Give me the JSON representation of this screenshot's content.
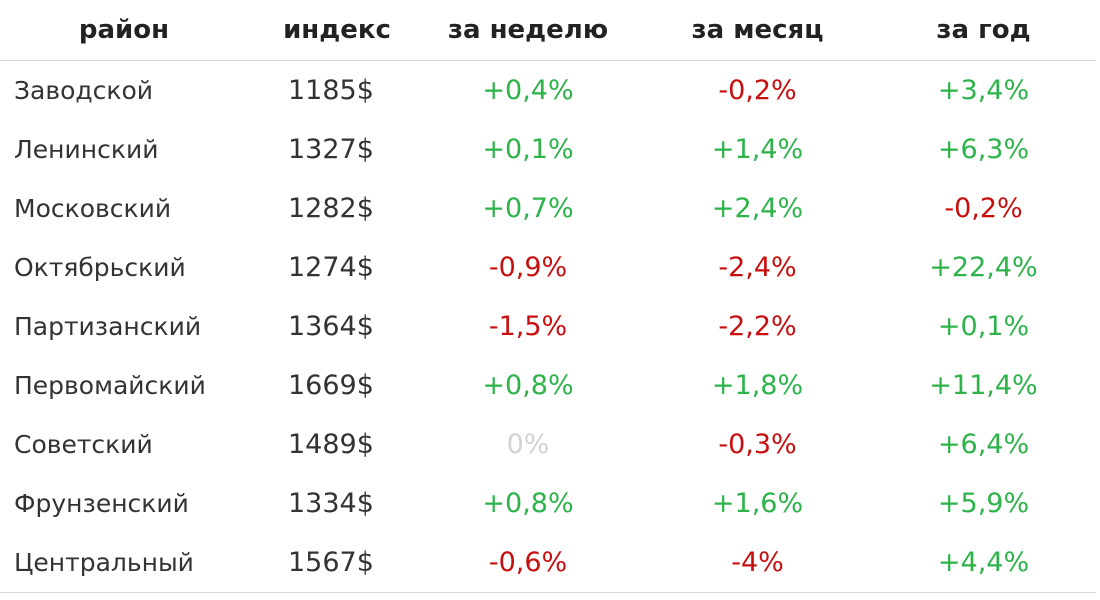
{
  "table": {
    "headers": {
      "district": "район",
      "index": "индекс",
      "week": "за неделю",
      "month": "за месяц",
      "year": "за год"
    },
    "rows": [
      {
        "district": "Заводской",
        "index": "1185$",
        "week": "+0,4%",
        "month": "-0,2%",
        "year": "+3,4%"
      },
      {
        "district": "Ленинский",
        "index": "1327$",
        "week": "+0,1%",
        "month": "+1,4%",
        "year": "+6,3%"
      },
      {
        "district": "Московский",
        "index": "1282$",
        "week": "+0,7%",
        "month": "+2,4%",
        "year": "-0,2%"
      },
      {
        "district": "Октябрьский",
        "index": "1274$",
        "week": "-0,9%",
        "month": "-2,4%",
        "year": "+22,4%"
      },
      {
        "district": "Партизанский",
        "index": "1364$",
        "week": "-1,5%",
        "month": "-2,2%",
        "year": "+0,1%"
      },
      {
        "district": "Первомайский",
        "index": "1669$",
        "week": "+0,8%",
        "month": "+1,8%",
        "year": "+11,4%"
      },
      {
        "district": "Советский",
        "index": "1489$",
        "week": "0%",
        "month": "-0,3%",
        "year": "+6,4%"
      },
      {
        "district": "Фрунзенский",
        "index": "1334$",
        "week": "+0,8%",
        "month": "+1,6%",
        "year": "+5,9%"
      },
      {
        "district": "Центральный",
        "index": "1567$",
        "week": "-0,6%",
        "month": "-4%",
        "year": "+4,4%"
      }
    ]
  },
  "colors": {
    "positive": "#2db34a",
    "negative": "#c80f0f",
    "zero": "#d2d2d2",
    "text": "#333333",
    "header_text": "#222222",
    "divider": "#d9d9d9"
  }
}
